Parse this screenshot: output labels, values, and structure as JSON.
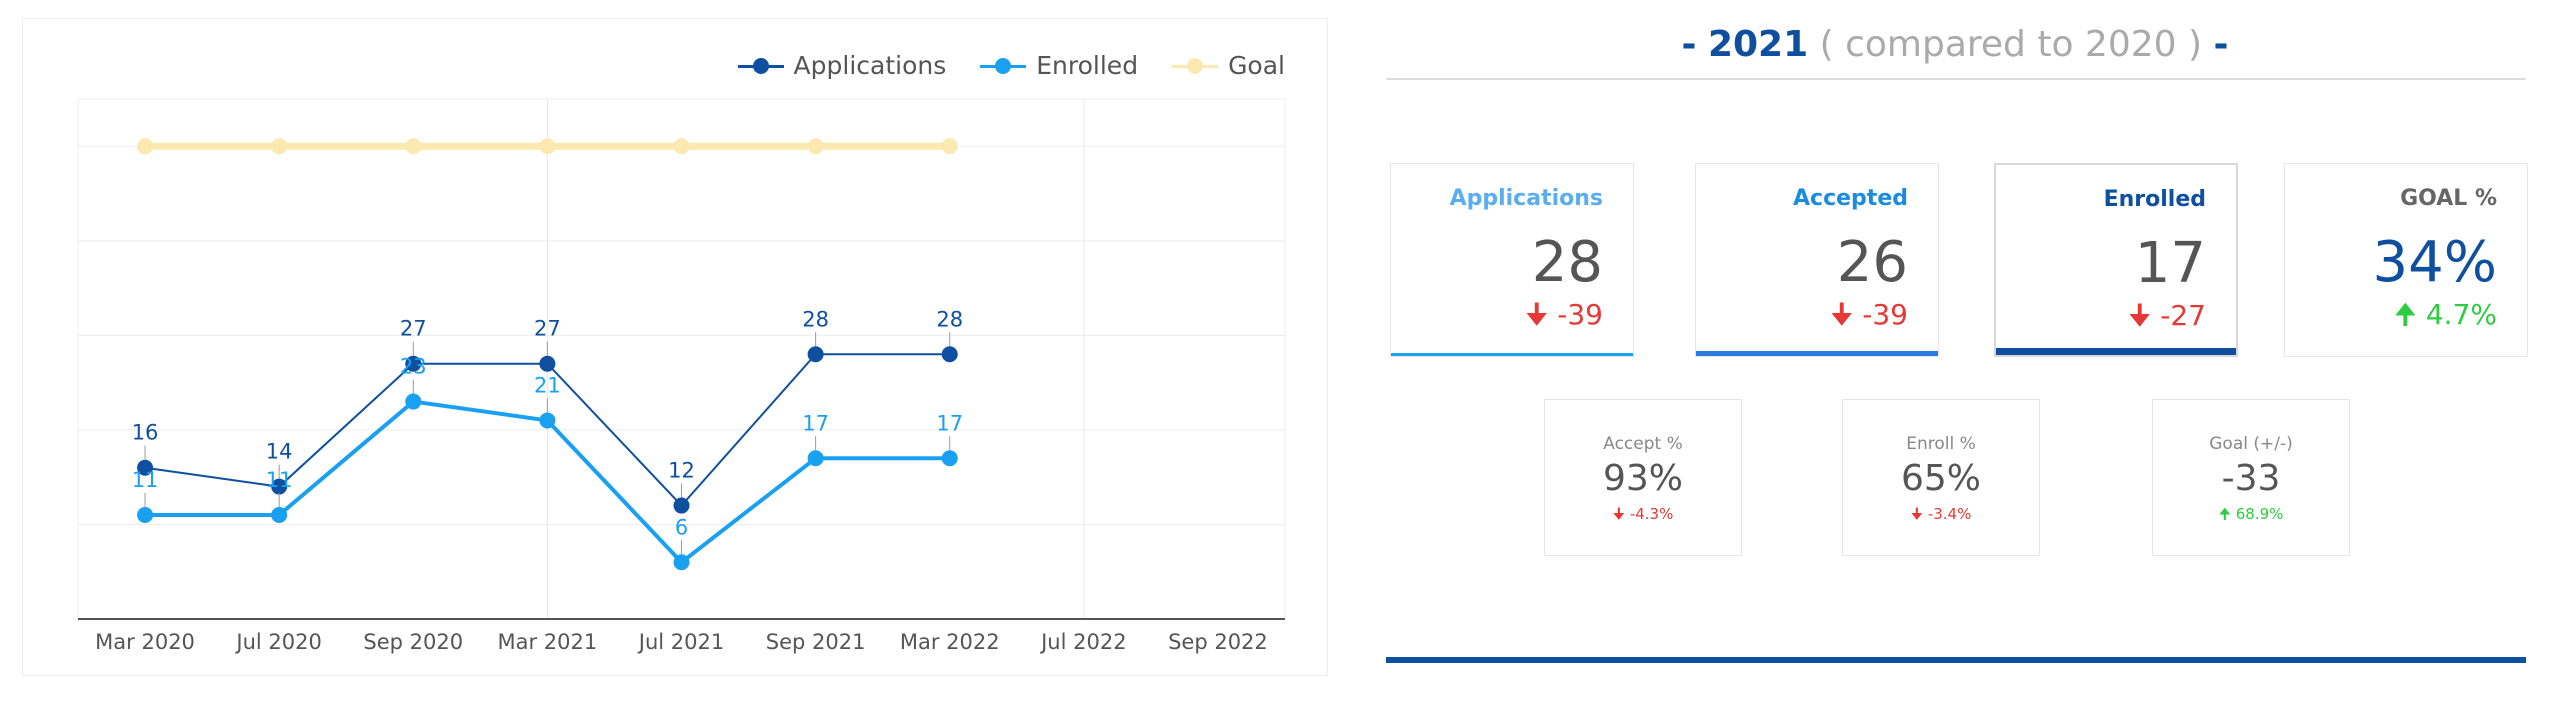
{
  "colors": {
    "applications": "#0f4fa0",
    "enrolled": "#1aa0f0",
    "goal": "#fbe9b0",
    "accent": "#0f4fa0",
    "negative": "#e53935",
    "positive": "#2ecc40"
  },
  "chart_data": {
    "type": "line",
    "categories": [
      "Mar 2020",
      "Jul 2020",
      "Sep 2020",
      "Mar 2021",
      "Jul 2021",
      "Sep 2021",
      "Mar 2022",
      "Jul 2022",
      "Sep 2022"
    ],
    "ylim": [
      0,
      55
    ],
    "grid": true,
    "legend_position": "top-right",
    "series": [
      {
        "name": "Applications",
        "color": "#0f4fa0",
        "values": [
          16,
          14,
          27,
          27,
          12,
          28,
          28,
          null,
          null
        ],
        "labels": true
      },
      {
        "name": "Enrolled",
        "color": "#1aa0f0",
        "values": [
          11,
          11,
          23,
          21,
          6,
          17,
          17,
          null,
          null
        ],
        "labels": true
      },
      {
        "name": "Goal",
        "color": "#fbe9b0",
        "values": [
          50,
          50,
          50,
          50,
          50,
          50,
          50,
          null,
          null
        ],
        "labels": false
      }
    ]
  },
  "legend": [
    "Applications",
    "Enrolled",
    "Goal"
  ],
  "summary": {
    "dash_left": "-",
    "year": "2021",
    "compared": "( compared to 2020 )",
    "dash_right": "-"
  },
  "cards": [
    {
      "label": "Applications",
      "value": "28",
      "delta": "-39",
      "direction": "down",
      "label_color": "#5aaef0",
      "bar_color": "#1aa0f0"
    },
    {
      "label": "Accepted",
      "value": "26",
      "delta": "-39",
      "direction": "down",
      "label_color": "#1a8ce0",
      "bar_color": "#2a7ce0"
    },
    {
      "label": "Enrolled",
      "value": "17",
      "delta": "-27",
      "direction": "down",
      "label_color": "#0f4fa0",
      "bar_color": "#0f4fa0"
    },
    {
      "label": "GOAL %",
      "value": "34%",
      "delta": "4.7%",
      "direction": "up",
      "label_color": "#666666"
    }
  ],
  "mini_cards": [
    {
      "label": "Accept %",
      "value": "93%",
      "delta": "-4.3%",
      "direction": "down"
    },
    {
      "label": "Enroll %",
      "value": "65%",
      "delta": "-3.4%",
      "direction": "down"
    },
    {
      "label": "Goal (+/-)",
      "value": "-33",
      "delta": "68.9%",
      "direction": "up"
    }
  ]
}
